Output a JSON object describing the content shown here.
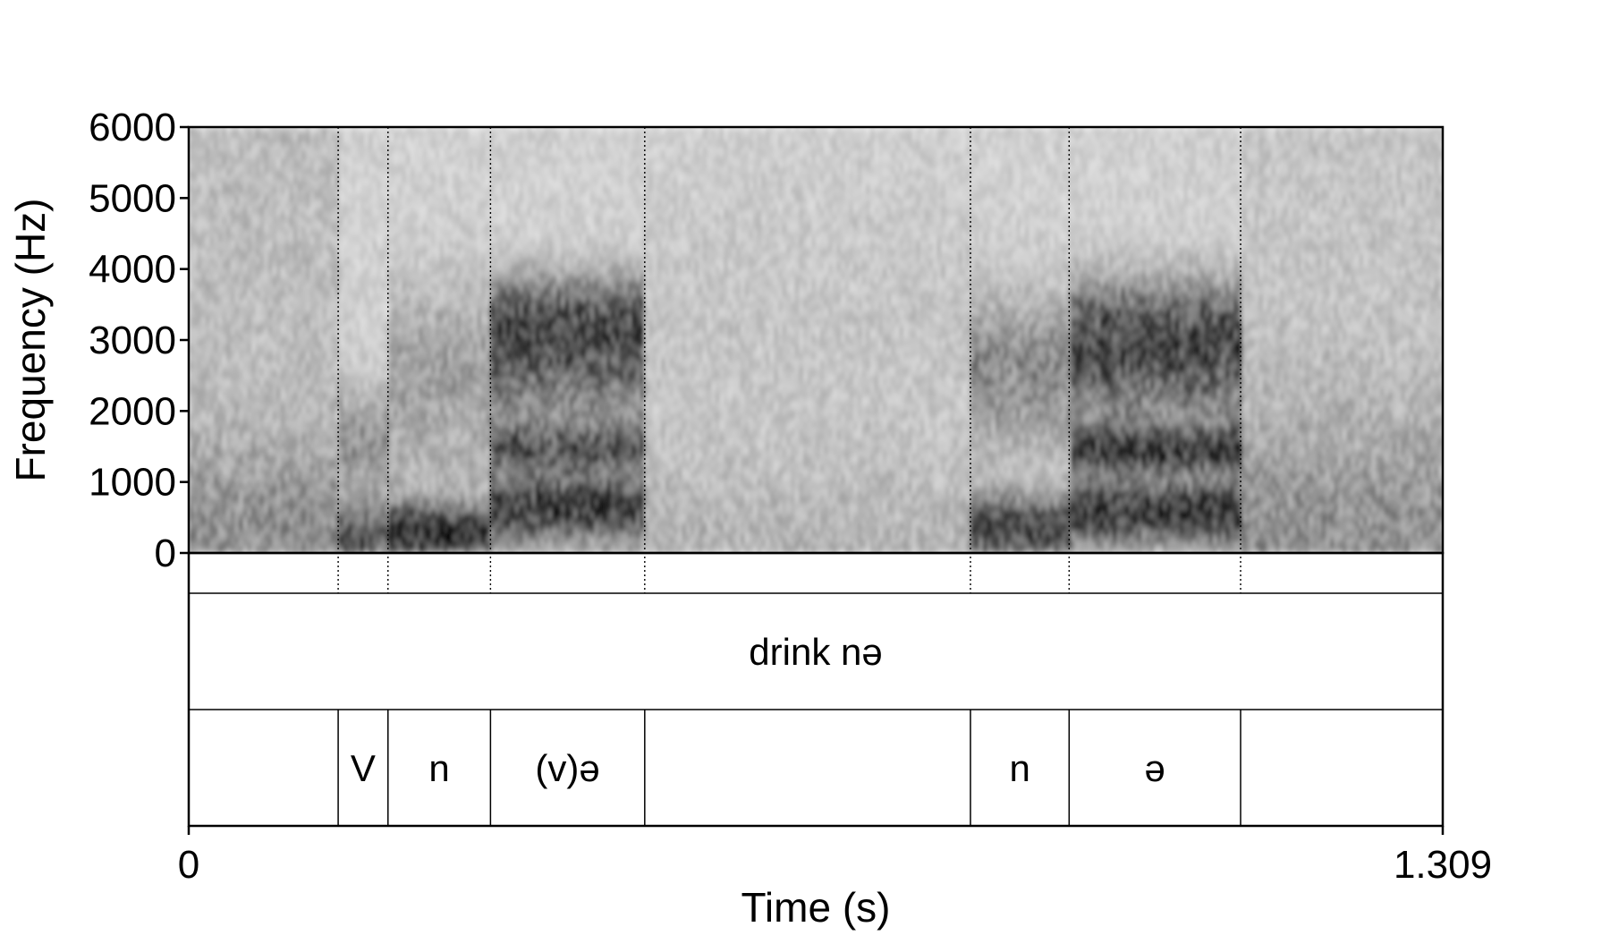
{
  "chart_data": {
    "type": "heatmap",
    "title": "",
    "xlabel": "Time (s)",
    "ylabel": "Frequency (Hz)",
    "xlim": [
      0,
      1.309
    ],
    "ylim": [
      0,
      6000
    ],
    "x_ticks": [
      {
        "value": 0,
        "label": "0"
      },
      {
        "value": 1.309,
        "label": "1.309"
      }
    ],
    "y_ticks": [
      {
        "value": 0,
        "label": "0"
      },
      {
        "value": 1000,
        "label": "1000"
      },
      {
        "value": 2000,
        "label": "2000"
      },
      {
        "value": 3000,
        "label": "3000"
      },
      {
        "value": 4000,
        "label": "4000"
      },
      {
        "value": 5000,
        "label": "5000"
      },
      {
        "value": 6000,
        "label": "6000"
      }
    ],
    "colormap": "grayscale (dark = high energy)",
    "tiers": [
      {
        "name": "",
        "intervals": [
          {
            "start": 0,
            "end": 1.309,
            "label": "drink nə"
          }
        ]
      },
      {
        "name": "",
        "intervals": [
          {
            "start": 0,
            "end": 0.156,
            "label": ""
          },
          {
            "start": 0.156,
            "end": 0.208,
            "label": "V"
          },
          {
            "start": 0.208,
            "end": 0.315,
            "label": "n"
          },
          {
            "start": 0.315,
            "end": 0.476,
            "label": "(v)ə"
          },
          {
            "start": 0.476,
            "end": 0.816,
            "label": ""
          },
          {
            "start": 0.816,
            "end": 0.919,
            "label": "n"
          },
          {
            "start": 0.919,
            "end": 1.098,
            "label": "ə"
          },
          {
            "start": 1.098,
            "end": 1.309,
            "label": ""
          }
        ]
      }
    ],
    "boundaries": [
      0.156,
      0.208,
      0.315,
      0.476,
      0.816,
      0.919,
      1.098
    ]
  }
}
